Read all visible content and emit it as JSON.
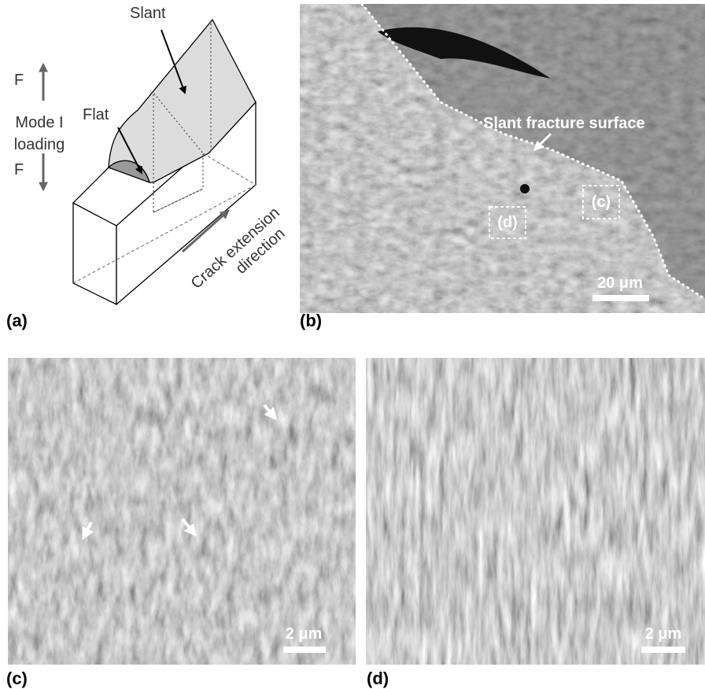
{
  "panel_a": {
    "label": "(a)",
    "slant": "Slant",
    "flat": "Flat",
    "force_top": "F",
    "loading": [
      "Mode I",
      "loading"
    ],
    "force_bottom": "F",
    "crack": [
      "Crack extension",
      "direction"
    ]
  },
  "panel_b": {
    "label": "(b)",
    "annotation": "Slant fracture surface",
    "box_c": "(c)",
    "box_d": "(d)",
    "scale_bar": "20 μm"
  },
  "panel_c": {
    "label": "(c)",
    "scale_bar": "2 μm"
  },
  "panel_d": {
    "label": "(d)",
    "scale_bar": "2 μm"
  }
}
